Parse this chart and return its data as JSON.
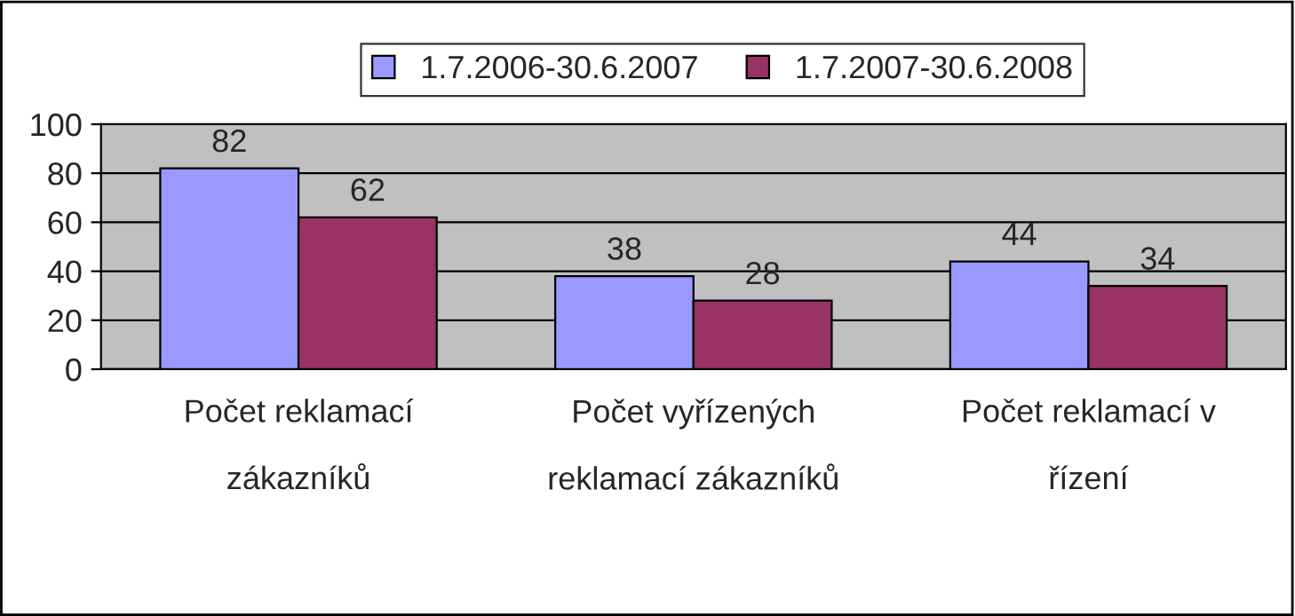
{
  "chart_data": {
    "type": "bar",
    "categories": [
      "Počet reklamací zákazníků",
      "Počet vyřízených reklamací zákazníků",
      "Počet reklamací v řízení"
    ],
    "series": [
      {
        "name": "1.7.2006-30.6.2007",
        "color": "#9999ff",
        "values": [
          82,
          38,
          44
        ]
      },
      {
        "name": "1.7.2007-30.6.2008",
        "color": "#993366",
        "values": [
          62,
          28,
          34
        ]
      }
    ],
    "ylim": [
      0,
      100
    ],
    "yticks": [
      0,
      20,
      40,
      60,
      80,
      100
    ],
    "grid": "y",
    "legend": "top",
    "data_labels": true
  }
}
